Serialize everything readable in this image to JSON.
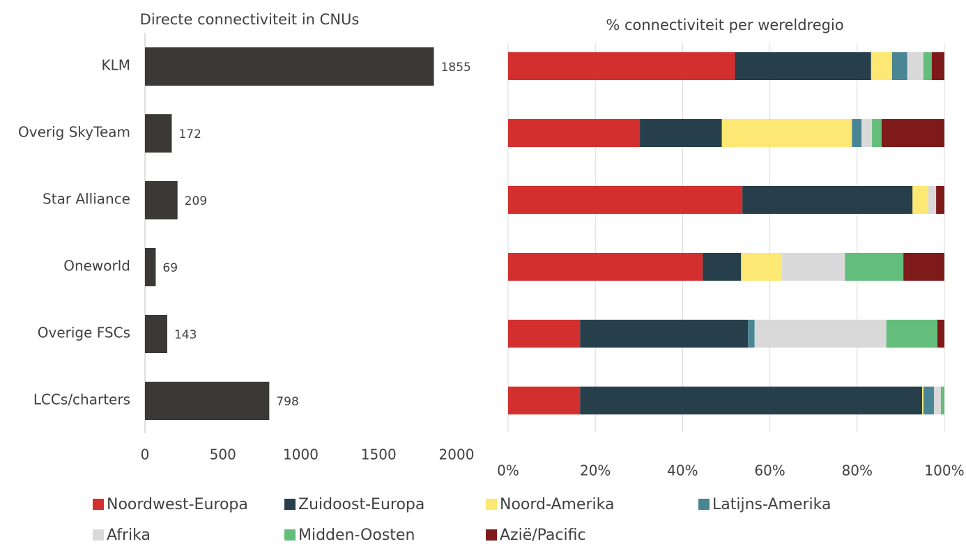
{
  "chart_data": [
    {
      "type": "bar",
      "title": "Directe connectiviteit in CNUs",
      "categories": [
        "KLM",
        "Overig SkyTeam",
        "Star Alliance",
        "Oneworld",
        "Overige FSCs",
        "LCCs/charters"
      ],
      "values": [
        1855,
        172,
        209,
        69,
        143,
        798
      ],
      "color": "#3b3937",
      "xlim": [
        0,
        2000
      ],
      "xticks": [
        0,
        500,
        1000,
        1500,
        2000
      ],
      "grid": false
    },
    {
      "type": "stacked_bar",
      "title": "% connectiviteit per wereldregio",
      "xlim": [
        0,
        100
      ],
      "xticks": [
        {
          "value": 0,
          "label": "0%"
        },
        {
          "value": 20,
          "label": "20%"
        },
        {
          "value": 40,
          "label": "40%"
        },
        {
          "value": 60,
          "label": "60%"
        },
        {
          "value": 80,
          "label": "80%"
        },
        {
          "value": 100,
          "label": "100%"
        }
      ],
      "grid": true,
      "legend": "bottom",
      "series": [
        {
          "name": "Noordwest-Europa",
          "color": "#d32f2f",
          "values": [
            52,
            30.2,
            53.7,
            44.6,
            16.5,
            16.5
          ]
        },
        {
          "name": "Zuidoost-Europa",
          "color": "#263f4a",
          "values": [
            31.2,
            18.8,
            39,
            8.8,
            38.5,
            78.4
          ]
        },
        {
          "name": "Noord-Amerika",
          "color": "#fce872",
          "values": [
            4.8,
            29.8,
            3.6,
            9.4,
            0,
            0.3
          ]
        },
        {
          "name": "Latijns-Amerika",
          "color": "#4a8593",
          "values": [
            3.5,
            2.2,
            0,
            0,
            1.5,
            2.4
          ]
        },
        {
          "name": "Afrika",
          "color": "#d9d9d9",
          "values": [
            3.7,
            2.4,
            1.8,
            14.4,
            30.2,
            1.6
          ]
        },
        {
          "name": "Midden-Oosten",
          "color": "#63bd7b",
          "values": [
            1.9,
            2.2,
            0,
            13.4,
            11.7,
            0.8
          ]
        },
        {
          "name": "Azië/Pacific",
          "color": "#7f1a1a",
          "values": [
            2.9,
            14.4,
            1.9,
            9.4,
            1.6,
            0
          ]
        }
      ]
    }
  ]
}
